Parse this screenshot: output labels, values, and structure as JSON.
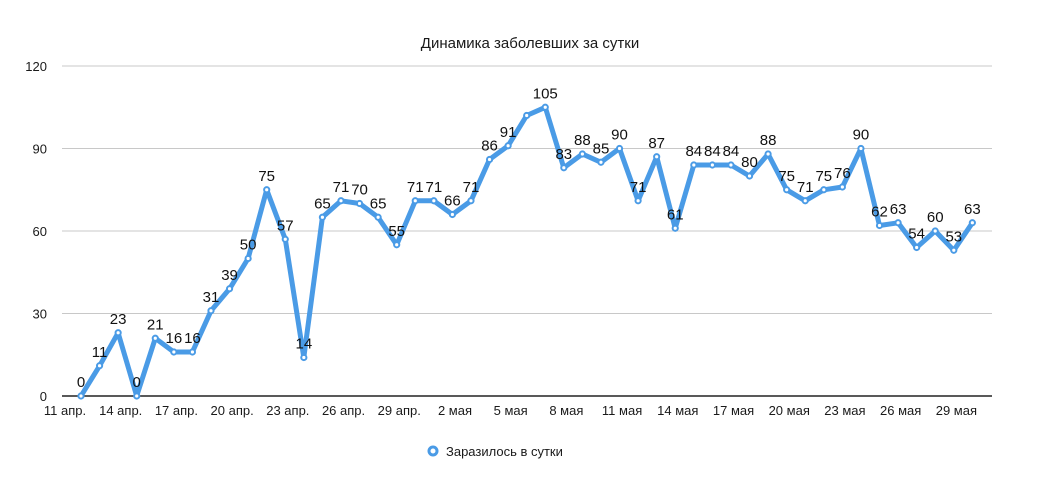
{
  "chart_data": {
    "type": "line",
    "title": "Динамика заболевших за сутки",
    "xlabel": "",
    "ylabel": "",
    "ylim": [
      0,
      120
    ],
    "yticks": [
      0,
      30,
      60,
      90,
      120
    ],
    "grid": true,
    "legend_position": "bottom",
    "x_tick_labels": [
      "11 апр.",
      "14 апр.",
      "17 апр.",
      "20 апр.",
      "23 апр.",
      "26 апр.",
      "29 апр.",
      "2 мая",
      "5 мая",
      "8 мая",
      "11 мая",
      "14 мая",
      "17 мая",
      "20 мая",
      "23 мая",
      "26 мая",
      "29 мая"
    ],
    "series": [
      {
        "name": "Заразилось в сутки",
        "color": "#4a9be6",
        "values": [
          0,
          11,
          23,
          0,
          21,
          16,
          16,
          31,
          39,
          50,
          75,
          57,
          14,
          65,
          71,
          70,
          65,
          55,
          71,
          71,
          66,
          71,
          86,
          91,
          102,
          105,
          83,
          88,
          85,
          90,
          71,
          87,
          61,
          84,
          84,
          84,
          80,
          88,
          75,
          71,
          75,
          76,
          90,
          62,
          63,
          54,
          60,
          53,
          63
        ],
        "labels_shown": [
          true,
          true,
          true,
          true,
          true,
          true,
          true,
          true,
          true,
          true,
          true,
          true,
          true,
          true,
          true,
          true,
          true,
          true,
          true,
          true,
          true,
          true,
          true,
          true,
          false,
          true,
          true,
          true,
          true,
          true,
          true,
          true,
          true,
          true,
          true,
          true,
          true,
          true,
          true,
          true,
          true,
          true,
          true,
          true,
          true,
          true,
          true,
          true,
          true
        ]
      }
    ]
  },
  "legend": {
    "label": "Заразилось в сутки"
  }
}
